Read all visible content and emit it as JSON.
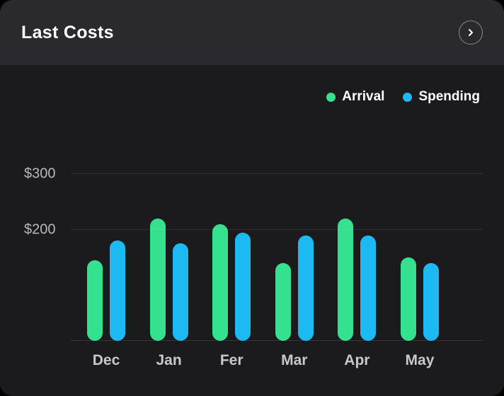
{
  "header": {
    "title": "Last Costs"
  },
  "legend": {
    "items": [
      {
        "label": "Arrival",
        "color": "#35e08e"
      },
      {
        "label": "Spending",
        "color": "#1db9f2"
      }
    ]
  },
  "chart_data": {
    "type": "bar",
    "title": "Last Costs",
    "categories": [
      "Dec",
      "Jan",
      "Fer",
      "Mar",
      "Apr",
      "May"
    ],
    "series": [
      {
        "name": "Arrival",
        "color": "#35e08e",
        "values": [
          145,
          220,
          210,
          140,
          220,
          150
        ]
      },
      {
        "name": "Spending",
        "color": "#1db9f2",
        "values": [
          180,
          175,
          195,
          190,
          190,
          140
        ]
      }
    ],
    "ylim": [
      0,
      300
    ],
    "yticks": [
      {
        "label": "$200",
        "value": 200
      },
      {
        "label": "$300",
        "value": 300
      }
    ],
    "grid": true,
    "legend_position": "top-right"
  }
}
